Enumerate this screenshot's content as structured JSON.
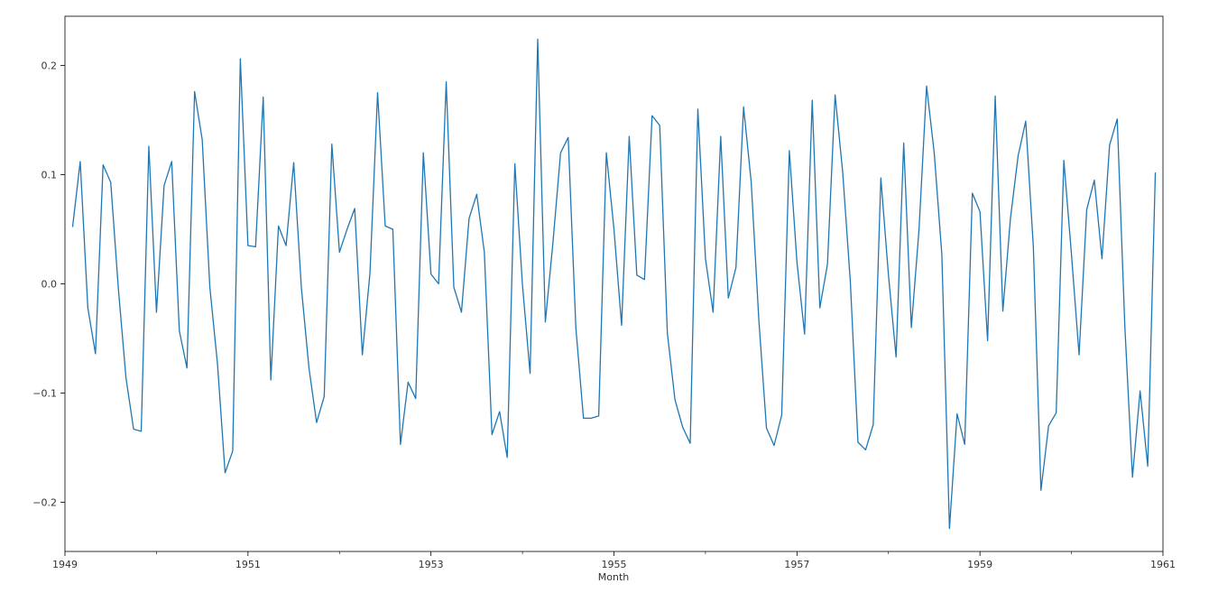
{
  "chart_data": {
    "type": "line",
    "title": "",
    "xlabel": "Month",
    "ylabel": "",
    "xlim": [
      1949.0,
      1961.0
    ],
    "ylim": [
      -0.245,
      0.245
    ],
    "grid": false,
    "xticks": [
      {
        "value": 1949,
        "label": "1949"
      },
      {
        "value": 1951,
        "label": "1951"
      },
      {
        "value": 1953,
        "label": "1953"
      },
      {
        "value": 1955,
        "label": "1955"
      },
      {
        "value": 1957,
        "label": "1957"
      },
      {
        "value": 1959,
        "label": "1959"
      },
      {
        "value": 1961,
        "label": "1961"
      }
    ],
    "minor_xticks": [
      1950,
      1952,
      1954,
      1956,
      1958,
      1960
    ],
    "yticks": [
      {
        "value": -0.2,
        "label": "−0.2"
      },
      {
        "value": -0.1,
        "label": "−0.1"
      },
      {
        "value": 0.0,
        "label": "0.0"
      },
      {
        "value": 0.1,
        "label": "0.1"
      },
      {
        "value": 0.2,
        "label": "0.2"
      }
    ],
    "colors": {
      "line": "#1f77b4",
      "axes": "#000000",
      "text": "#333333"
    },
    "series": [
      {
        "x_start": "1949-02",
        "step": "month",
        "values": [
          0.052,
          0.112,
          -0.022,
          -0.064,
          0.109,
          0.093,
          -0.004,
          -0.086,
          -0.133,
          -0.135,
          0.126,
          -0.026,
          0.09,
          0.112,
          -0.043,
          -0.077,
          0.176,
          0.132,
          -0.003,
          -0.073,
          -0.173,
          -0.153,
          0.206,
          0.035,
          0.034,
          0.171,
          -0.088,
          0.053,
          0.035,
          0.111,
          -0.003,
          -0.077,
          -0.127,
          -0.103,
          0.128,
          0.029,
          0.05,
          0.069,
          -0.065,
          0.01,
          0.175,
          0.053,
          0.05,
          -0.147,
          -0.09,
          -0.105,
          0.12,
          0.009,
          0.0,
          0.185,
          -0.003,
          -0.026,
          0.06,
          0.082,
          0.029,
          -0.138,
          -0.117,
          -0.159,
          0.11,
          -0.001,
          -0.082,
          0.224,
          -0.035,
          0.038,
          0.12,
          0.134,
          -0.04,
          -0.123,
          -0.123,
          -0.121,
          0.12,
          0.05,
          -0.038,
          0.135,
          0.008,
          0.004,
          0.154,
          0.145,
          -0.045,
          -0.106,
          -0.131,
          -0.146,
          0.16,
          0.023,
          -0.026,
          0.135,
          -0.013,
          0.015,
          0.162,
          0.093,
          -0.033,
          -0.132,
          -0.148,
          -0.12,
          0.122,
          0.02,
          -0.046,
          0.168,
          -0.022,
          0.018,
          0.173,
          0.102,
          0.002,
          -0.145,
          -0.152,
          -0.129,
          0.097,
          0.008,
          -0.067,
          0.129,
          -0.04,
          0.049,
          0.181,
          0.12,
          0.027,
          -0.224,
          -0.119,
          -0.147,
          0.083,
          0.066,
          -0.052,
          0.172,
          -0.025,
          0.06,
          0.117,
          0.149,
          0.034,
          -0.189,
          -0.13,
          -0.118,
          0.113,
          0.027,
          -0.065,
          0.068,
          0.095,
          0.023,
          0.127,
          0.151,
          -0.039,
          -0.177,
          -0.098,
          -0.167,
          0.102
        ]
      }
    ]
  }
}
